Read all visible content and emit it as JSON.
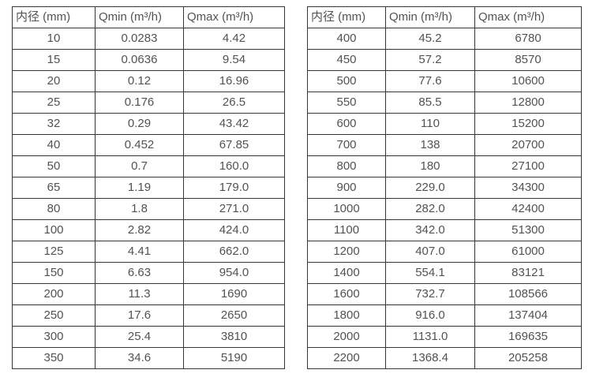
{
  "page": {
    "background": "#ffffff",
    "text_color": "#525252",
    "border_color": "#363636"
  },
  "tables": [
    {
      "name": "flow-table-dn10-350",
      "headers": [
        "内径 (mm)",
        "Qmin (m³/h)",
        "Qmax (m³/h)"
      ],
      "rows": [
        [
          "10",
          "0.0283",
          "4.42"
        ],
        [
          "15",
          "0.0636",
          "9.54"
        ],
        [
          "20",
          "0.12",
          "16.96"
        ],
        [
          "25",
          "0.176",
          "26.5"
        ],
        [
          "32",
          "0.29",
          "43.42"
        ],
        [
          "40",
          "0.452",
          "67.85"
        ],
        [
          "50",
          "0.7",
          "160.0"
        ],
        [
          "65",
          "1.19",
          "179.0"
        ],
        [
          "80",
          "1.8",
          "271.0"
        ],
        [
          "100",
          "2.82",
          "424.0"
        ],
        [
          "125",
          "4.41",
          "662.0"
        ],
        [
          "150",
          "6.63",
          "954.0"
        ],
        [
          "200",
          "11.3",
          "1690"
        ],
        [
          "250",
          "17.6",
          "2650"
        ],
        [
          "300",
          "25.4",
          "3810"
        ],
        [
          "350",
          "34.6",
          "5190"
        ]
      ]
    },
    {
      "name": "flow-table-dn400-2200",
      "headers": [
        "内径 (mm)",
        "Qmin (m³/h)",
        "Qmax (m³/h)"
      ],
      "rows": [
        [
          "400",
          "45.2",
          "6780"
        ],
        [
          "450",
          "57.2",
          "8570"
        ],
        [
          "500",
          "77.6",
          "10600"
        ],
        [
          "550",
          "85.5",
          "12800"
        ],
        [
          "600",
          "110",
          "15200"
        ],
        [
          "700",
          "138",
          "20700"
        ],
        [
          "800",
          "180",
          "27100"
        ],
        [
          "900",
          "229.0",
          "34300"
        ],
        [
          "1000",
          "282.0",
          "42400"
        ],
        [
          "1100",
          "342.0",
          "51300"
        ],
        [
          "1200",
          "407.0",
          "61000"
        ],
        [
          "1400",
          "554.1",
          "83121"
        ],
        [
          "1600",
          "732.7",
          "108566"
        ],
        [
          "1800",
          "916.0",
          "137404"
        ],
        [
          "2000",
          "1131.0",
          "169635"
        ],
        [
          "2200",
          "1368.4",
          "205258"
        ]
      ]
    }
  ]
}
